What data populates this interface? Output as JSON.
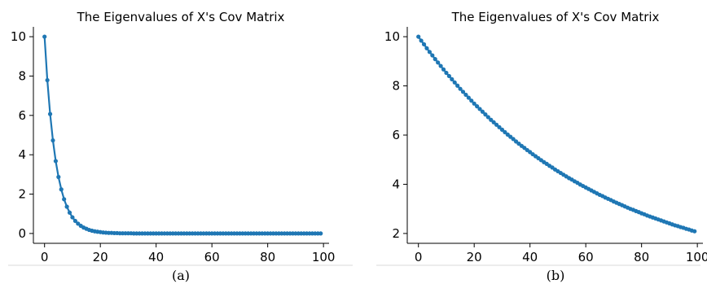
{
  "chart_data": [
    {
      "type": "line",
      "panel": "a",
      "title": "The Eigenvalues of X's Cov Matrix",
      "caption": "(a)",
      "xlabel": "",
      "ylabel": "",
      "xlim": [
        -4,
        102
      ],
      "ylim": [
        -0.5,
        10.5
      ],
      "xticks": [
        0,
        20,
        40,
        60,
        80,
        100
      ],
      "yticks": [
        0,
        2,
        4,
        6,
        8,
        10
      ],
      "grid": false,
      "color": "#1f77b4",
      "marker": "circle",
      "series": [
        {
          "x": [
            0,
            1,
            2,
            3,
            4,
            5,
            6,
            7,
            8,
            9,
            10,
            11,
            12,
            13,
            14,
            15,
            16,
            17,
            18,
            19,
            20,
            21,
            22,
            23,
            24,
            25,
            26,
            27,
            28,
            29,
            30,
            31,
            32,
            33,
            34,
            35,
            36,
            37,
            38,
            39,
            40,
            41,
            42,
            43,
            44,
            45,
            46,
            47,
            48,
            49,
            50,
            51,
            52,
            53,
            54,
            55,
            56,
            57,
            58,
            59,
            60,
            61,
            62,
            63,
            64,
            65,
            66,
            67,
            68,
            69,
            70,
            71,
            72,
            73,
            74,
            75,
            76,
            77,
            78,
            79,
            80,
            81,
            82,
            83,
            84,
            85,
            86,
            87,
            88,
            89,
            90,
            91,
            92,
            93,
            94,
            95,
            96,
            97,
            98,
            99
          ],
          "values": [
            10.0,
            7.79,
            6.07,
            4.73,
            3.68,
            2.87,
            2.24,
            1.74,
            1.36,
            1.06,
            0.82,
            0.64,
            0.5,
            0.39,
            0.3,
            0.24,
            0.18,
            0.14,
            0.11,
            0.09,
            0.07,
            0.05,
            0.04,
            0.03,
            0.03,
            0.02,
            0.02,
            0.01,
            0.01,
            0.01,
            0.01,
            0.01,
            0.0,
            0.0,
            0.0,
            0.0,
            0.0,
            0.0,
            0.0,
            0.0,
            0.0,
            0.0,
            0.0,
            0.0,
            0.0,
            0.0,
            0.0,
            0.0,
            0.0,
            0.0,
            0.0,
            0.0,
            0.0,
            0.0,
            0.0,
            0.0,
            0.0,
            0.0,
            0.0,
            0.0,
            0.0,
            0.0,
            0.0,
            0.0,
            0.0,
            0.0,
            0.0,
            0.0,
            0.0,
            0.0,
            0.0,
            0.0,
            0.0,
            0.0,
            0.0,
            0.0,
            0.0,
            0.0,
            0.0,
            0.0,
            0.0,
            0.0,
            0.0,
            0.0,
            0.0,
            0.0,
            0.0,
            0.0,
            0.0,
            0.0,
            0.0,
            0.0,
            0.0,
            0.0,
            0.0,
            0.0,
            0.0,
            0.0,
            0.0,
            0.0
          ]
        }
      ]
    },
    {
      "type": "line",
      "panel": "b",
      "title": "The Eigenvalues of X's Cov Matrix",
      "caption": "(b)",
      "xlabel": "",
      "ylabel": "",
      "xlim": [
        -4,
        102
      ],
      "ylim": [
        1.6,
        10.4
      ],
      "xticks": [
        0,
        20,
        40,
        60,
        80,
        100
      ],
      "yticks": [
        2,
        4,
        6,
        8,
        10
      ],
      "grid": false,
      "color": "#1f77b4",
      "marker": "circle",
      "series": [
        {
          "x": [
            0,
            1,
            2,
            3,
            4,
            5,
            6,
            7,
            8,
            9,
            10,
            11,
            12,
            13,
            14,
            15,
            16,
            17,
            18,
            19,
            20,
            21,
            22,
            23,
            24,
            25,
            26,
            27,
            28,
            29,
            30,
            31,
            32,
            33,
            34,
            35,
            36,
            37,
            38,
            39,
            40,
            41,
            42,
            43,
            44,
            45,
            46,
            47,
            48,
            49,
            50,
            51,
            52,
            53,
            54,
            55,
            56,
            57,
            58,
            59,
            60,
            61,
            62,
            63,
            64,
            65,
            66,
            67,
            68,
            69,
            70,
            71,
            72,
            73,
            74,
            75,
            76,
            77,
            78,
            79,
            80,
            81,
            82,
            83,
            84,
            85,
            86,
            87,
            88,
            89,
            90,
            91,
            92,
            93,
            94,
            95,
            96,
            97,
            98,
            99
          ],
          "values": [
            10.0,
            9.84,
            9.69,
            9.53,
            9.38,
            9.24,
            9.09,
            8.95,
            8.81,
            8.67,
            8.53,
            8.4,
            8.27,
            8.14,
            8.01,
            7.88,
            7.76,
            7.64,
            7.52,
            7.4,
            7.28,
            7.17,
            7.06,
            6.95,
            6.84,
            6.73,
            6.62,
            6.52,
            6.42,
            6.32,
            6.22,
            6.12,
            6.02,
            5.93,
            5.84,
            5.74,
            5.65,
            5.56,
            5.48,
            5.39,
            5.31,
            5.22,
            5.14,
            5.06,
            4.98,
            4.9,
            4.83,
            4.75,
            4.68,
            4.6,
            4.53,
            4.46,
            4.39,
            4.32,
            4.25,
            4.19,
            4.12,
            4.06,
            3.99,
            3.93,
            3.87,
            3.81,
            3.75,
            3.69,
            3.63,
            3.57,
            3.52,
            3.46,
            3.41,
            3.36,
            3.3,
            3.25,
            3.2,
            3.15,
            3.1,
            3.05,
            3.0,
            2.96,
            2.91,
            2.87,
            2.82,
            2.78,
            2.73,
            2.69,
            2.65,
            2.61,
            2.57,
            2.53,
            2.49,
            2.45,
            2.41,
            2.37,
            2.33,
            2.3,
            2.26,
            2.23,
            2.19,
            2.16,
            2.12,
            2.09
          ]
        }
      ]
    }
  ]
}
